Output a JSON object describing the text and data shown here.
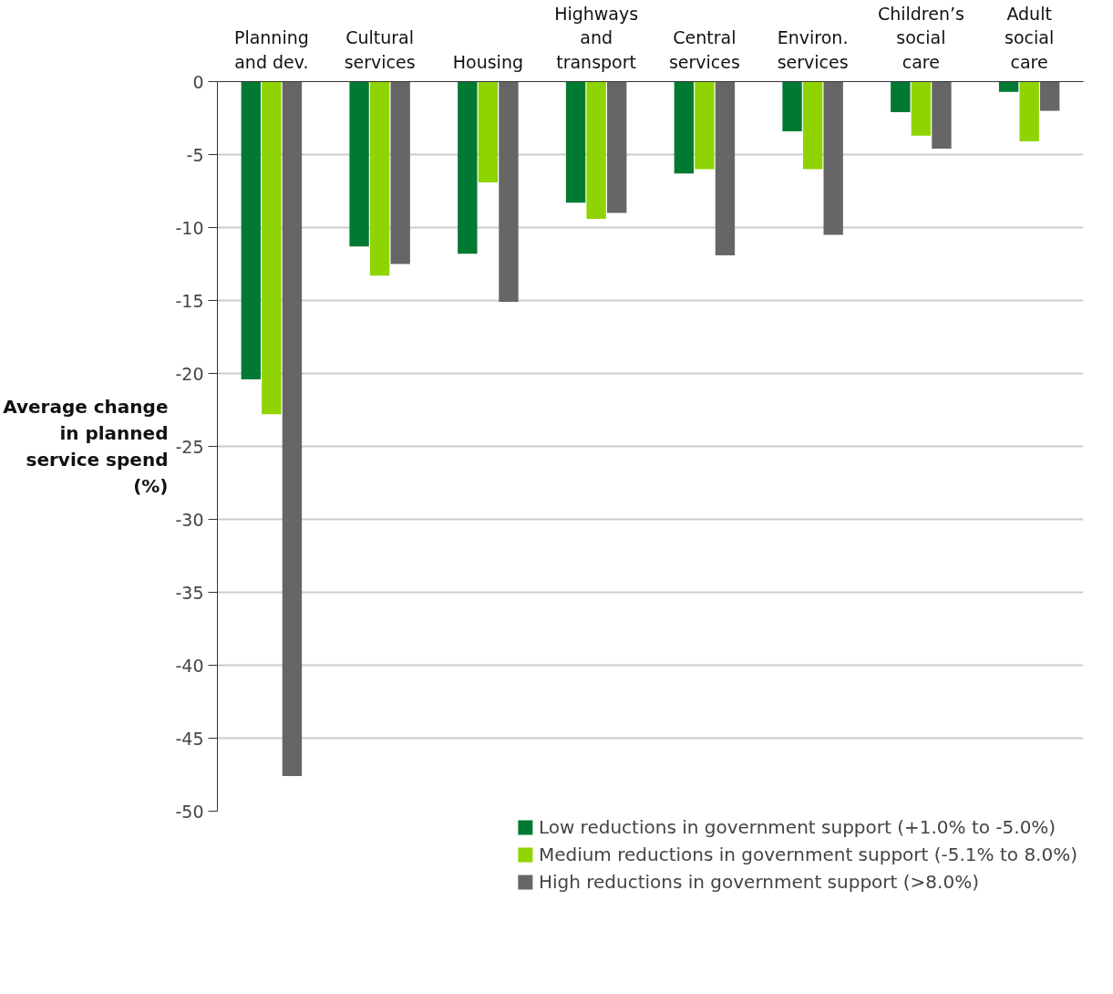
{
  "chart_data": {
    "type": "bar",
    "ylabel": "Average change in planned service spend (%)",
    "categories": [
      "Planning and dev.",
      "Cultural services",
      "Housing",
      "Highways and transport",
      "Central services",
      "Environ. services",
      "Children’s social care",
      "Adult social care"
    ],
    "series": [
      {
        "name": "Low reductions in government support (+1.0% to -5.0%)",
        "color": "#007a33",
        "values": [
          -20.4,
          -11.3,
          -11.8,
          -8.3,
          -6.3,
          -3.4,
          -2.1,
          -0.7
        ]
      },
      {
        "name": "Medium reductions in government support (-5.1% to 8.0%)",
        "color": "#8fd400",
        "values": [
          -22.8,
          -13.3,
          -6.9,
          -9.4,
          -6.0,
          -6.0,
          -3.7,
          -4.1
        ]
      },
      {
        "name": "High reductions in government support (>8.0%)",
        "color": "#666666",
        "values": [
          -47.6,
          -12.5,
          -15.1,
          -9.0,
          -11.9,
          -10.5,
          -4.6,
          -2.0
        ]
      }
    ],
    "ylim": [
      -50,
      0
    ],
    "yticks": [
      0,
      -5,
      -10,
      -15,
      -20,
      -25,
      -30,
      -35,
      -40,
      -45,
      -50
    ],
    "grid": "y",
    "legend": "bottom"
  }
}
